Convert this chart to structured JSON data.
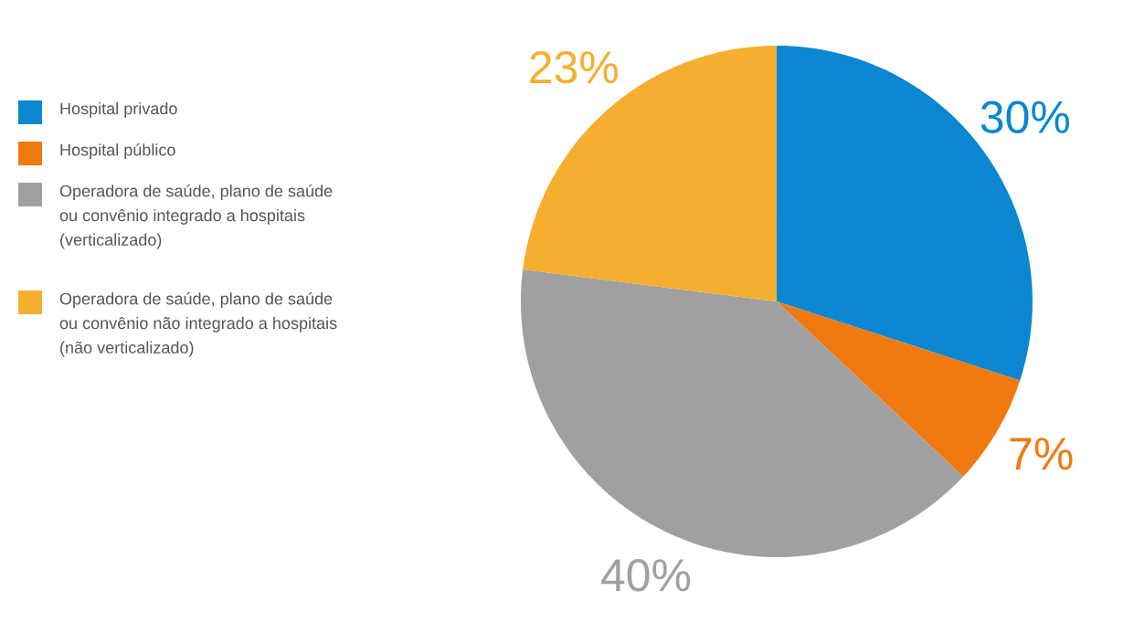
{
  "chart_data": {
    "type": "pie",
    "categories": [
      "Hospital privado",
      "Hospital público",
      "Operadora de saúde, plano de saúde ou convênio integrado a hospitais (verticalizado)",
      "Operadora de saúde, plano de saúde ou convênio não integrado a hospitais (não verticalizado)"
    ],
    "values": [
      30,
      7,
      40,
      23
    ],
    "colors": [
      "#0a87d0",
      "#f07a10",
      "#a0a0a0",
      "#f6ae30"
    ],
    "value_labels": [
      "30%",
      "7%",
      "40%",
      "23%"
    ],
    "legend": "left"
  }
}
